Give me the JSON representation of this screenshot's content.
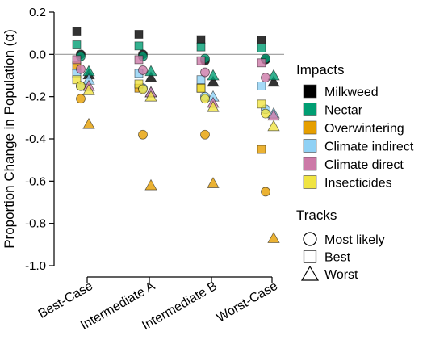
{
  "chart_data": {
    "type": "scatter",
    "title": "",
    "xlabel": "",
    "ylabel": "Proportion Change in Population (α)",
    "categories": [
      "Best-Case",
      "Intermediate A",
      "Intermediate B",
      "Worst-Case"
    ],
    "ylim": [
      -1.0,
      0.2
    ],
    "yticks": [
      0.2,
      0.0,
      -0.2,
      -0.4,
      -0.6,
      -0.8,
      -1.0
    ],
    "ytick_labels": [
      "0.2",
      "0.0",
      "-0.2",
      "-0.4",
      "-0.6",
      "-0.8",
      "-1.0"
    ],
    "reference_line": 0.0,
    "legend_impacts": {
      "title": "Impacts",
      "items": [
        {
          "name": "Milkweed",
          "color": "#000000"
        },
        {
          "name": "Nectar",
          "color": "#009E73"
        },
        {
          "name": "Overwintering",
          "color": "#E69F00"
        },
        {
          "name": "Climate indirect",
          "color": "#8FD1F5"
        },
        {
          "name": "Climate direct",
          "color": "#CC79A7"
        },
        {
          "name": "Insecticides",
          "color": "#F0E442"
        }
      ]
    },
    "legend_tracks": {
      "title": "Tracks",
      "items": [
        {
          "name": "Most likely",
          "shape": "circle"
        },
        {
          "name": "Best",
          "shape": "square"
        },
        {
          "name": "Worst",
          "shape": "triangle"
        }
      ]
    },
    "series": [
      {
        "impact": "Milkweed",
        "track": "Best",
        "values": [
          0.11,
          0.095,
          0.07,
          0.068
        ]
      },
      {
        "impact": "Milkweed",
        "track": "Most likely",
        "values": [
          0.0,
          0.0,
          -0.03,
          -0.025
        ]
      },
      {
        "impact": "Milkweed",
        "track": "Worst",
        "values": [
          -0.095,
          -0.11,
          -0.13,
          -0.13
        ]
      },
      {
        "impact": "Nectar",
        "track": "Best",
        "values": [
          0.045,
          0.04,
          0.035,
          0.03
        ]
      },
      {
        "impact": "Nectar",
        "track": "Most likely",
        "values": [
          -0.01,
          -0.01,
          -0.02,
          -0.02
        ]
      },
      {
        "impact": "Nectar",
        "track": "Worst",
        "values": [
          -0.08,
          -0.08,
          -0.1,
          -0.1
        ]
      },
      {
        "impact": "Overwintering",
        "track": "Best",
        "values": [
          -0.055,
          -0.16,
          -0.16,
          -0.45
        ]
      },
      {
        "impact": "Overwintering",
        "track": "Most likely",
        "values": [
          -0.21,
          -0.38,
          -0.38,
          -0.65
        ]
      },
      {
        "impact": "Overwintering",
        "track": "Worst",
        "values": [
          -0.33,
          -0.62,
          -0.61,
          -0.87
        ]
      },
      {
        "impact": "Climate indirect",
        "track": "Best",
        "values": [
          -0.09,
          -0.09,
          -0.12,
          -0.15
        ]
      },
      {
        "impact": "Climate indirect",
        "track": "Most likely",
        "values": [
          -0.15,
          -0.16,
          -0.2,
          -0.26
        ]
      },
      {
        "impact": "Climate indirect",
        "track": "Worst",
        "values": [
          -0.12,
          -0.18,
          -0.2,
          -0.28
        ]
      },
      {
        "impact": "Climate direct",
        "track": "Best",
        "values": [
          -0.025,
          -0.025,
          -0.03,
          -0.04
        ]
      },
      {
        "impact": "Climate direct",
        "track": "Most likely",
        "values": [
          -0.07,
          -0.075,
          -0.085,
          -0.11
        ]
      },
      {
        "impact": "Climate direct",
        "track": "Worst",
        "values": [
          -0.15,
          -0.18,
          -0.23,
          -0.29
        ]
      },
      {
        "impact": "Insecticides",
        "track": "Best",
        "values": [
          -0.12,
          -0.14,
          -0.16,
          -0.235
        ]
      },
      {
        "impact": "Insecticides",
        "track": "Most likely",
        "values": [
          -0.15,
          -0.165,
          -0.21,
          -0.28
        ]
      },
      {
        "impact": "Insecticides",
        "track": "Worst",
        "values": [
          -0.17,
          -0.2,
          -0.25,
          -0.34
        ]
      }
    ]
  }
}
